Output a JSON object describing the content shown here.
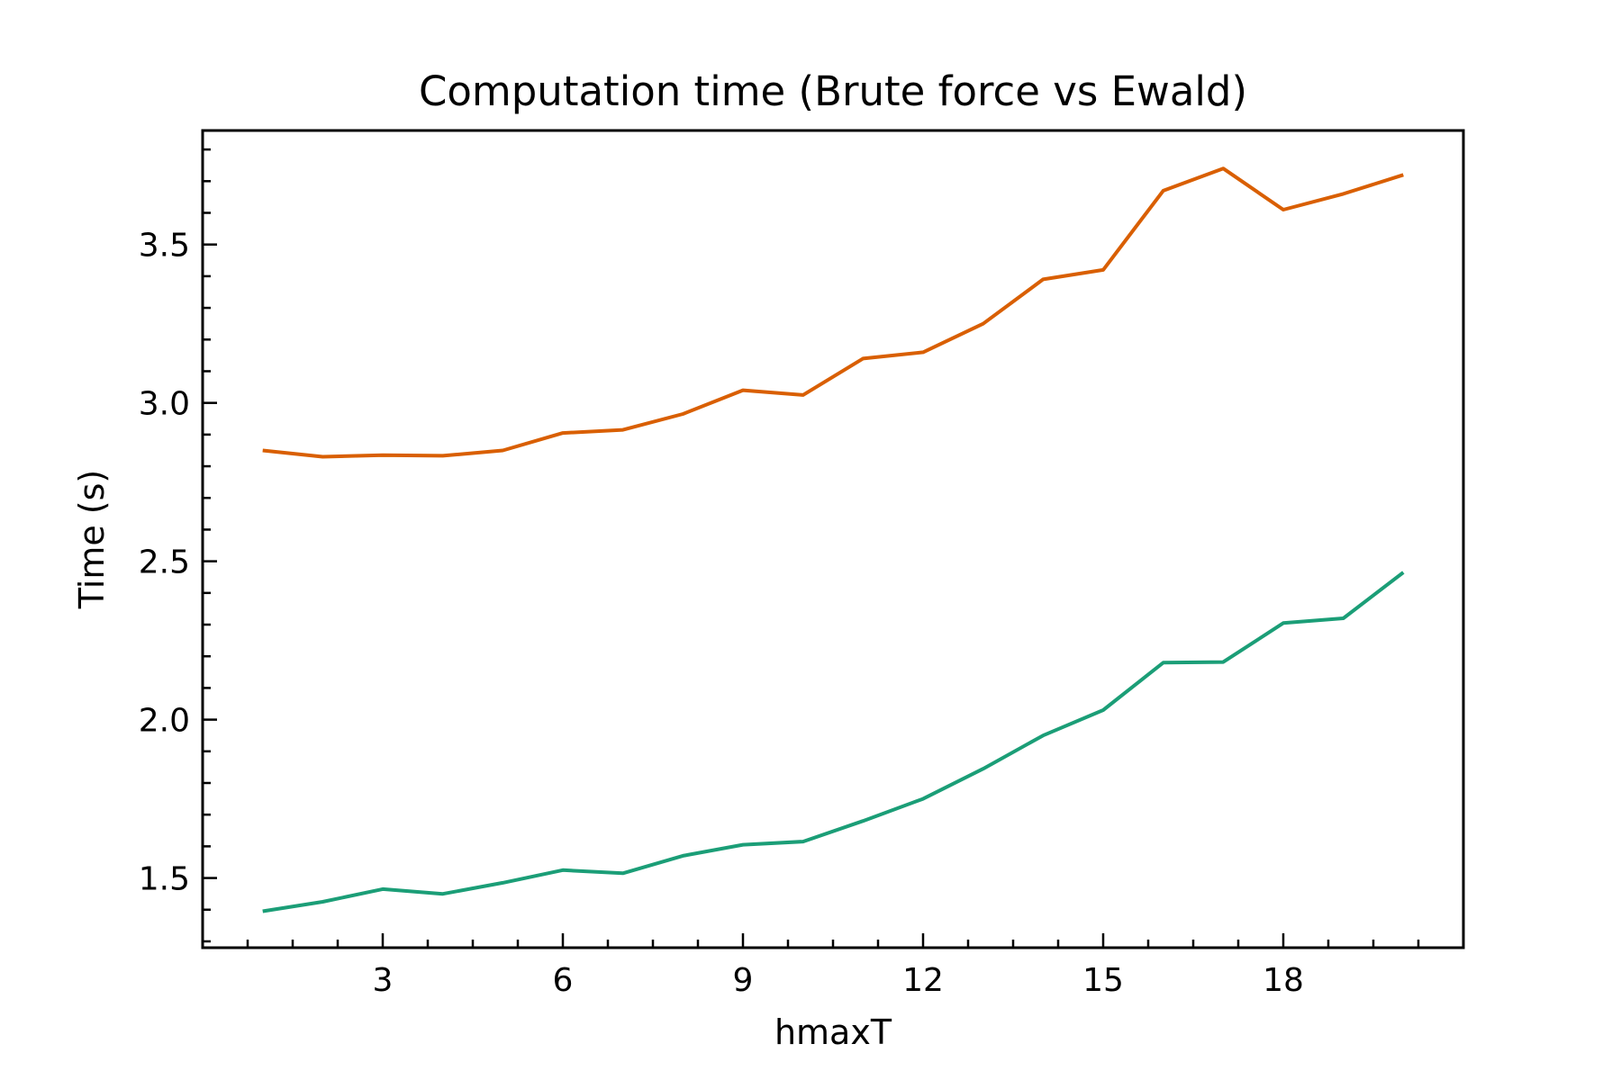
{
  "chart_data": {
    "type": "line",
    "title": "Computation time (Brute force vs Ewald)",
    "xlabel": "hmaxT",
    "ylabel": "Time (s)",
    "xlim": [
      0,
      21
    ],
    "ylim": [
      1.28,
      3.86
    ],
    "xticks": [
      3,
      6,
      9,
      12,
      15,
      18
    ],
    "xtick_labels": [
      "3",
      "6",
      "9",
      "12",
      "15",
      "18"
    ],
    "x_minor_step": 0.75,
    "yticks": [
      1.5,
      2.0,
      2.5,
      3.0,
      3.5
    ],
    "ytick_labels": [
      "1.5",
      "2.0",
      "2.5",
      "3.0",
      "3.5"
    ],
    "y_minor_step": 0.1,
    "grid": false,
    "x": [
      1,
      2,
      3,
      4,
      5,
      6,
      7,
      8,
      9,
      10,
      11,
      12,
      13,
      14,
      15,
      16,
      17,
      18,
      19,
      20
    ],
    "series": [
      {
        "color": "#d95f02",
        "values": [
          2.85,
          2.83,
          2.835,
          2.833,
          2.85,
          2.905,
          2.915,
          2.965,
          3.04,
          3.025,
          3.14,
          3.16,
          3.25,
          3.39,
          3.42,
          3.67,
          3.74,
          3.61,
          3.66,
          3.72
        ]
      },
      {
        "color": "#1b9e77",
        "values": [
          1.395,
          1.425,
          1.465,
          1.45,
          1.485,
          1.525,
          1.515,
          1.57,
          1.605,
          1.615,
          1.68,
          1.75,
          1.845,
          1.95,
          2.03,
          2.18,
          2.182,
          2.305,
          2.32,
          2.465
        ]
      }
    ]
  }
}
